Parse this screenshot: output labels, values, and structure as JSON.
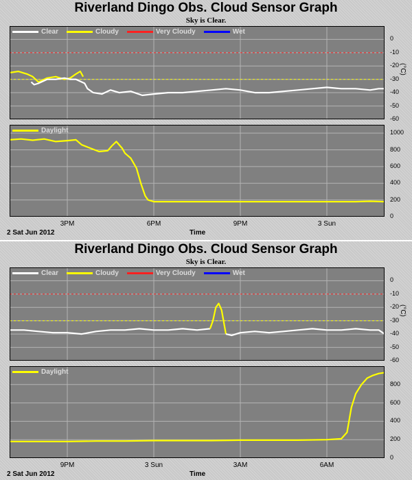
{
  "colors": {
    "plot_background": "#808080",
    "frame": "#000000",
    "grid": "#b4b4b4",
    "clear": "#ffffff",
    "cloudy": "#ffff00",
    "very_cloudy": "#ff2020",
    "wet": "#0000ff",
    "daylight": "#ffff00"
  },
  "panels": [
    {
      "title": "Riverland Dingo Obs. Cloud Sensor Graph",
      "subtitle": "Sky is Clear.",
      "date_label": "2 Sat Jun 2012",
      "time_label": "Time",
      "x_ticks": [
        {
          "label": "3PM",
          "t": 15.0
        },
        {
          "label": "6PM",
          "t": 18.0
        },
        {
          "label": "9PM",
          "t": 21.0
        },
        {
          "label": "3 Sun",
          "t": 24.0
        }
      ]
    },
    {
      "title": "Riverland Dingo Obs. Cloud Sensor Graph",
      "subtitle": "Sky is Clear.",
      "date_label": "2 Sat Jun 2012",
      "time_label": "Time",
      "x_ticks": [
        {
          "label": "9PM",
          "t": 21.0
        },
        {
          "label": "3 Sun",
          "t": 24.0
        },
        {
          "label": "3AM",
          "t": 27.0
        },
        {
          "label": "6AM",
          "t": 30.0
        }
      ]
    }
  ],
  "chart_data": [
    {
      "type": "line",
      "panel": 0,
      "plot": "sky_temperature",
      "title": "Riverland Dingo Obs. Cloud Sensor Graph",
      "xlabel": "Time",
      "ylabel": "(°C)",
      "xlim": [
        13.0,
        26.0
      ],
      "ylim": [
        -60,
        10
      ],
      "y_ticks": [
        0,
        -10,
        -20,
        -30,
        -40,
        -50,
        -60
      ],
      "threshold_lines": [
        {
          "y": -10,
          "color": "#ff2020"
        },
        {
          "y": -30,
          "color": "#ffff00"
        }
      ],
      "legend": [
        "Clear",
        "Cloudy",
        "Very Cloudy",
        "Wet"
      ],
      "legend_position": "top",
      "grid": true,
      "series": [
        {
          "name": "Cloudy",
          "color": "#ffff00",
          "x": [
            13.0,
            13.3,
            13.6,
            13.8,
            14.0,
            14.3,
            14.6,
            14.9,
            15.1,
            15.3,
            15.45,
            15.55
          ],
          "y": [
            -25,
            -24,
            -26,
            -28,
            -32,
            -29,
            -28,
            -30,
            -29,
            -26,
            -24,
            -28
          ]
        },
        {
          "name": "Clear",
          "color": "#ffffff",
          "x": [
            13.75,
            13.85,
            14.0,
            14.3,
            14.6,
            14.9,
            15.1,
            15.3,
            15.6,
            15.7,
            15.9,
            16.2,
            16.5,
            16.8,
            17.2,
            17.6,
            18.0,
            18.5,
            19.0,
            19.5,
            20.0,
            20.5,
            21.0,
            21.5,
            22.0,
            22.5,
            23.0,
            23.5,
            24.0,
            24.5,
            25.0,
            25.5,
            25.8,
            26.0
          ],
          "y": [
            -32,
            -34,
            -33,
            -30,
            -30,
            -29,
            -30,
            -30,
            -33,
            -37,
            -40,
            -41,
            -38,
            -40,
            -39,
            -42,
            -41,
            -40,
            -40,
            -39,
            -38,
            -37,
            -38,
            -40,
            -40,
            -39,
            -38,
            -37,
            -36,
            -37,
            -37,
            -38,
            -37,
            -37
          ]
        }
      ]
    },
    {
      "type": "line",
      "panel": 0,
      "plot": "daylight",
      "xlabel": "Time",
      "xlim": [
        13.0,
        26.0
      ],
      "ylim": [
        0,
        1100
      ],
      "y_ticks": [
        0,
        200,
        400,
        600,
        800,
        1000
      ],
      "legend": [
        "Daylight"
      ],
      "legend_position": "top-left",
      "grid": true,
      "series": [
        {
          "name": "Daylight",
          "color": "#ffff00",
          "x": [
            13.0,
            13.4,
            13.8,
            14.2,
            14.6,
            15.0,
            15.3,
            15.5,
            15.8,
            16.1,
            16.4,
            16.55,
            16.7,
            16.9,
            17.0,
            17.2,
            17.4,
            17.55,
            17.7,
            17.8,
            18.0,
            18.5,
            19.0,
            20.0,
            21.0,
            22.0,
            23.0,
            24.0,
            25.0,
            25.5,
            26.0
          ],
          "y": [
            920,
            930,
            915,
            930,
            900,
            910,
            920,
            860,
            820,
            780,
            790,
            850,
            900,
            820,
            760,
            700,
            580,
            400,
            250,
            200,
            180,
            180,
            180,
            180,
            180,
            180,
            180,
            180,
            180,
            185,
            180
          ]
        }
      ]
    },
    {
      "type": "line",
      "panel": 1,
      "plot": "sky_temperature",
      "title": "Riverland Dingo Obs. Cloud Sensor Graph",
      "xlabel": "Time",
      "ylabel": "(°C)",
      "xlim": [
        19.0,
        32.0
      ],
      "ylim": [
        -60,
        10
      ],
      "y_ticks": [
        0,
        -10,
        -20,
        -30,
        -40,
        -50,
        -60
      ],
      "threshold_lines": [
        {
          "y": -10,
          "color": "#ff2020"
        },
        {
          "y": -30,
          "color": "#ffff00"
        }
      ],
      "legend": [
        "Clear",
        "Cloudy",
        "Very Cloudy",
        "Wet"
      ],
      "legend_position": "top",
      "grid": true,
      "series": [
        {
          "name": "Clear",
          "color": "#ffffff",
          "x": [
            19.0,
            19.5,
            20.0,
            20.5,
            21.0,
            21.5,
            22.0,
            22.5,
            23.0,
            23.5,
            24.0,
            24.5,
            25.0,
            25.5,
            25.95
          ],
          "y": [
            -37,
            -37,
            -38,
            -39,
            -39,
            -40,
            -38,
            -37,
            -37,
            -36,
            -37,
            -37,
            -36,
            -37,
            -36
          ]
        },
        {
          "name": "Cloudy",
          "color": "#ffff00",
          "x": [
            25.95,
            26.05,
            26.15,
            26.25,
            26.35,
            26.45,
            26.5
          ],
          "y": [
            -36,
            -30,
            -20,
            -17,
            -22,
            -34,
            -40
          ]
        },
        {
          "name": "Clear",
          "color": "#ffffff",
          "x": [
            26.5,
            26.7,
            27.0,
            27.5,
            28.0,
            28.5,
            29.0,
            29.5,
            30.0,
            30.5,
            31.0,
            31.5,
            31.8,
            32.0
          ],
          "y": [
            -40,
            -41,
            -39,
            -38,
            -39,
            -38,
            -37,
            -36,
            -37,
            -37,
            -36,
            -37,
            -37,
            -40
          ]
        }
      ]
    },
    {
      "type": "line",
      "panel": 1,
      "plot": "daylight",
      "xlabel": "Time",
      "xlim": [
        19.0,
        32.0
      ],
      "ylim": [
        0,
        1000
      ],
      "y_ticks": [
        0,
        200,
        400,
        600,
        800
      ],
      "legend": [
        "Daylight"
      ],
      "legend_position": "top-left",
      "grid": true,
      "series": [
        {
          "name": "Daylight",
          "color": "#ffff00",
          "x": [
            19.0,
            20.0,
            21.0,
            22.0,
            23.0,
            24.0,
            25.0,
            26.0,
            27.0,
            28.0,
            29.0,
            30.0,
            30.5,
            30.7,
            30.85,
            31.0,
            31.2,
            31.4,
            31.6,
            31.8,
            32.0
          ],
          "y": [
            180,
            180,
            180,
            185,
            185,
            190,
            190,
            190,
            195,
            195,
            195,
            200,
            210,
            280,
            550,
            700,
            800,
            870,
            900,
            920,
            930
          ]
        }
      ]
    }
  ],
  "sky_legend": {
    "clear": "Clear",
    "cloudy": "Cloudy",
    "very_cloudy": "Very Cloudy",
    "wet": "Wet"
  },
  "daylight_legend": {
    "daylight": "Daylight"
  },
  "units": {
    "sky": "(°C)"
  }
}
